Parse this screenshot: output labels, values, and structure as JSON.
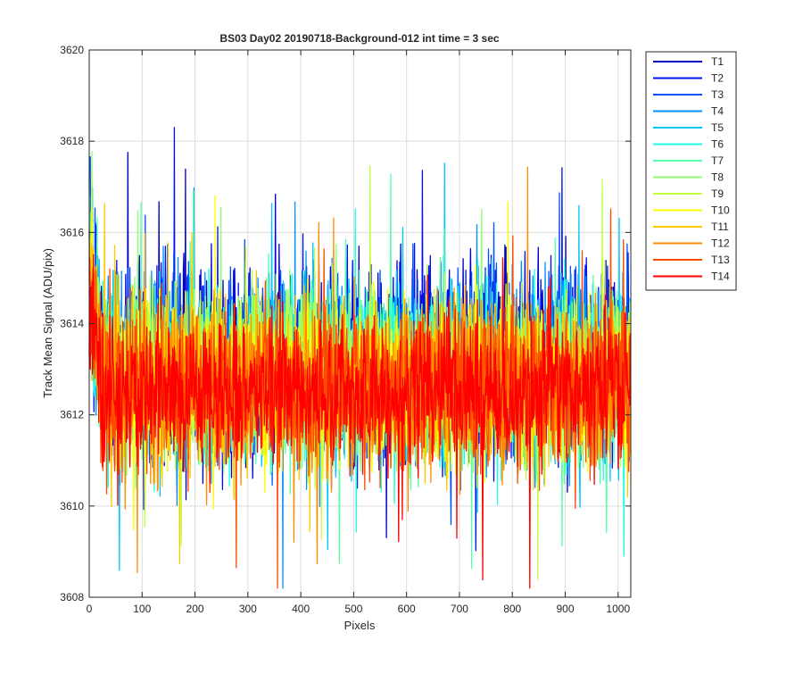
{
  "chart_data": {
    "type": "line",
    "title": "BS03 Day02 20190718-Background-012 int time = 3 sec",
    "xlabel": "Pixels",
    "ylabel": "Track Mean Signal (ADU/pix)",
    "xlim": [
      0,
      1024
    ],
    "ylim": [
      3608,
      3620
    ],
    "xticks": [
      0,
      100,
      200,
      300,
      400,
      500,
      600,
      700,
      800,
      900,
      1000
    ],
    "yticks": [
      3608,
      3610,
      3612,
      3614,
      3616,
      3618,
      3620
    ],
    "grid": true,
    "legend_position": "outside-top-right",
    "series": [
      {
        "name": "T1",
        "color": "#0000c8",
        "mean": 3613.1,
        "spread": 1.0
      },
      {
        "name": "T2",
        "color": "#0011ee",
        "mean": 3613.1,
        "spread": 1.0
      },
      {
        "name": "T3",
        "color": "#0050ff",
        "mean": 3613.0,
        "spread": 0.95
      },
      {
        "name": "T4",
        "color": "#0090ff",
        "mean": 3613.0,
        "spread": 0.95
      },
      {
        "name": "T5",
        "color": "#00c8ff",
        "mean": 3613.0,
        "spread": 0.9
      },
      {
        "name": "T6",
        "color": "#1effe0",
        "mean": 3612.9,
        "spread": 0.9
      },
      {
        "name": "T7",
        "color": "#55ffaa",
        "mean": 3612.9,
        "spread": 0.9
      },
      {
        "name": "T8",
        "color": "#8cff73",
        "mean": 3612.8,
        "spread": 0.9
      },
      {
        "name": "T9",
        "color": "#c3ff3c",
        "mean": 3612.8,
        "spread": 0.85
      },
      {
        "name": "T10",
        "color": "#faff05",
        "mean": 3612.7,
        "spread": 0.85
      },
      {
        "name": "T11",
        "color": "#ffc800",
        "mean": 3612.7,
        "spread": 0.85
      },
      {
        "name": "T12",
        "color": "#ff8c00",
        "mean": 3612.6,
        "spread": 0.85
      },
      {
        "name": "T13",
        "color": "#ff4b00",
        "mean": 3612.6,
        "spread": 0.85
      },
      {
        "name": "T14",
        "color": "#ff0000",
        "mean": 3612.5,
        "spread": 0.8
      }
    ]
  }
}
